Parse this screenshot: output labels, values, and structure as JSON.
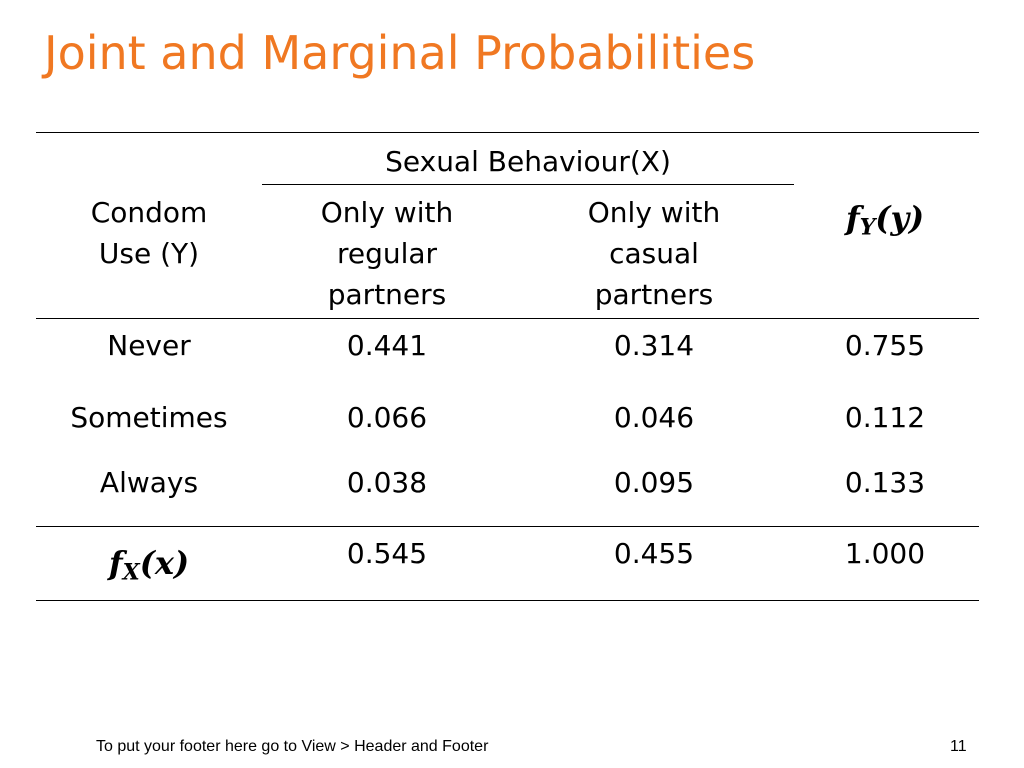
{
  "slide": {
    "title": "Joint and Marginal Probabilities",
    "footer": "To put your footer here go to View > Header and Footer",
    "page_number": "11",
    "accent_color": "#f07822"
  },
  "table": {
    "group_header": "Sexual Behaviour(X)",
    "row_header": [
      "Condom",
      "Use (Y)"
    ],
    "columns": [
      [
        "Only with",
        "regular",
        "partners"
      ],
      [
        "Only with",
        "casual",
        "partners"
      ]
    ],
    "marginal_y_label": {
      "f": "f",
      "sub": "Y",
      "arg": "(y)"
    },
    "marginal_x_label": {
      "f": "f",
      "sub": "X",
      "arg": "(x)"
    },
    "rows": [
      {
        "label": "Never",
        "values": [
          "0.441",
          "0.314"
        ],
        "fy": "0.755"
      },
      {
        "label": "Sometimes",
        "values": [
          "0.066",
          "0.046"
        ],
        "fy": "0.112"
      },
      {
        "label": "Always",
        "values": [
          "0.038",
          "0.095"
        ],
        "fy": "0.133"
      }
    ],
    "marginal_x": {
      "values": [
        "0.545",
        "0.455"
      ],
      "total": "1.000"
    }
  }
}
